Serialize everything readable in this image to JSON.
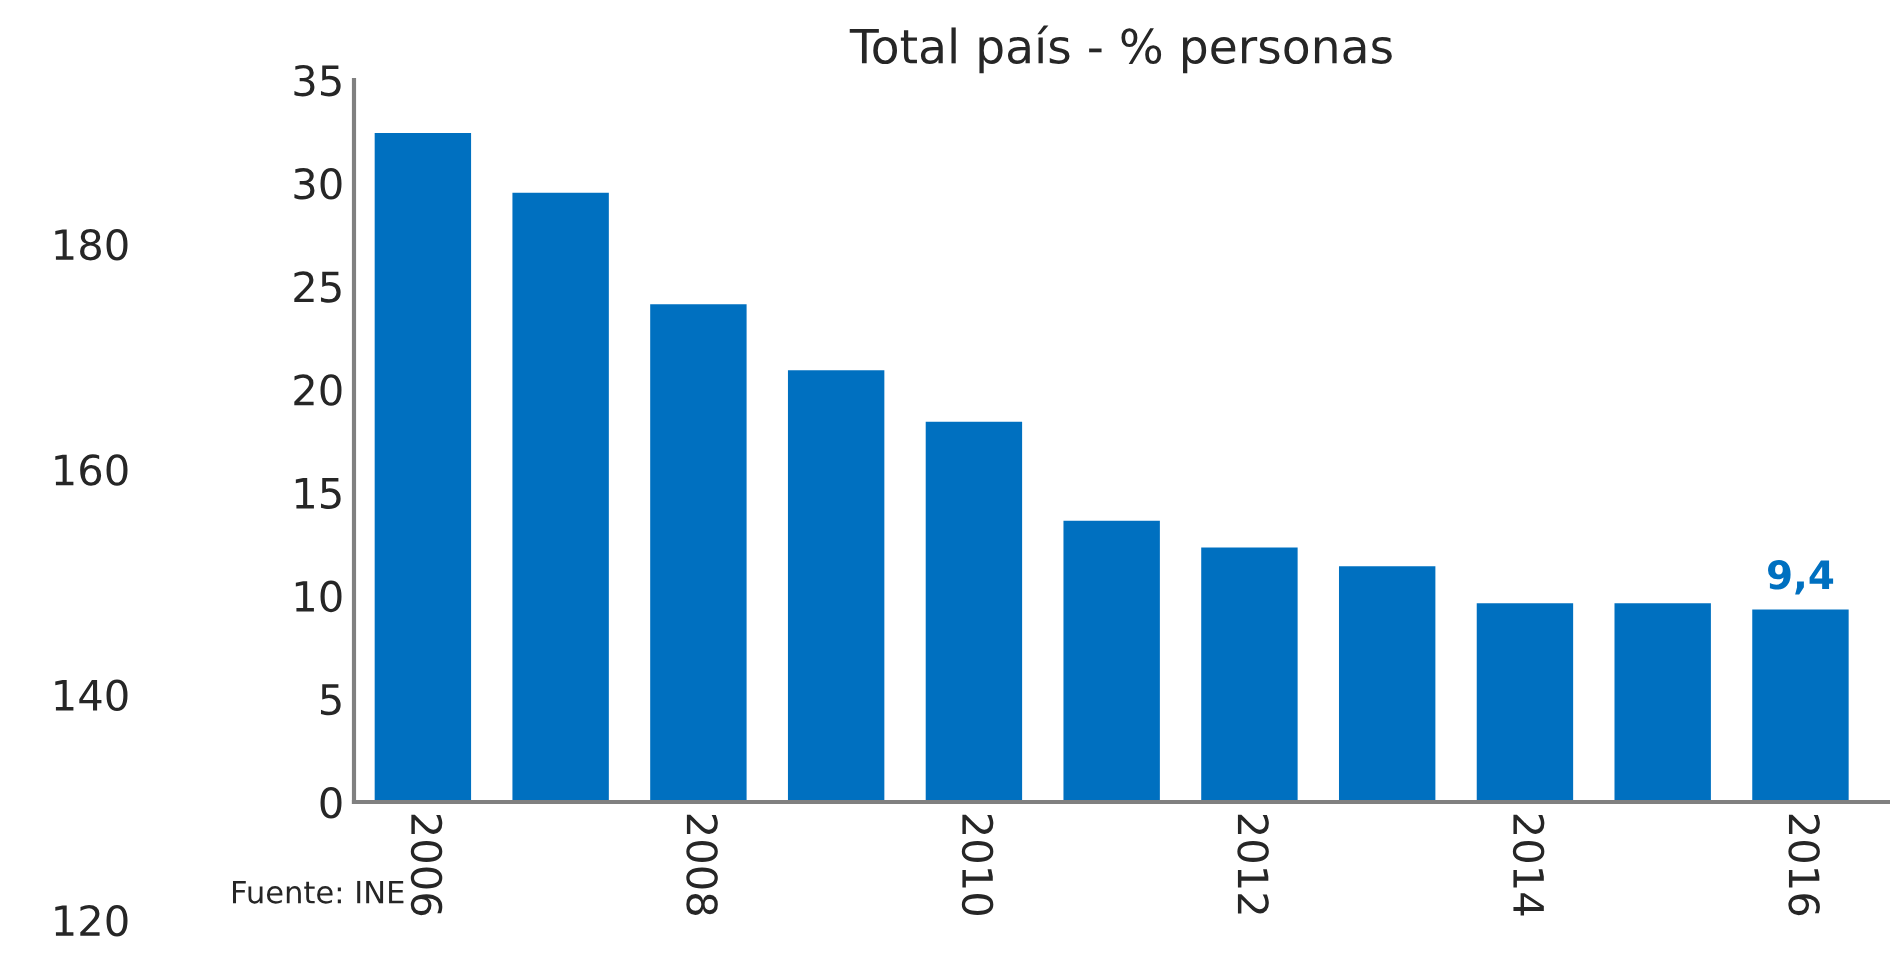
{
  "chart_data": {
    "type": "bar",
    "title": "Total país - % personas",
    "categories": [
      "2006",
      null,
      "2008",
      null,
      "2010",
      null,
      "2012",
      null,
      "2014",
      null,
      "2016"
    ],
    "values": [
      32.5,
      29.6,
      24.2,
      21.0,
      18.5,
      13.7,
      12.4,
      11.5,
      9.7,
      9.7,
      9.4
    ],
    "value_labels": [
      null,
      null,
      null,
      null,
      null,
      null,
      null,
      null,
      null,
      null,
      "9,4"
    ],
    "color": "#0070c0",
    "ylim": [
      0,
      35
    ],
    "yticks": [
      0,
      5,
      10,
      15,
      20,
      25,
      30,
      35
    ],
    "y2lim": [
      120,
      180
    ],
    "y2ticks": [
      120,
      140,
      160,
      180
    ],
    "grid": false,
    "legend": false,
    "annotations": [
      "Fuente: INE"
    ]
  }
}
